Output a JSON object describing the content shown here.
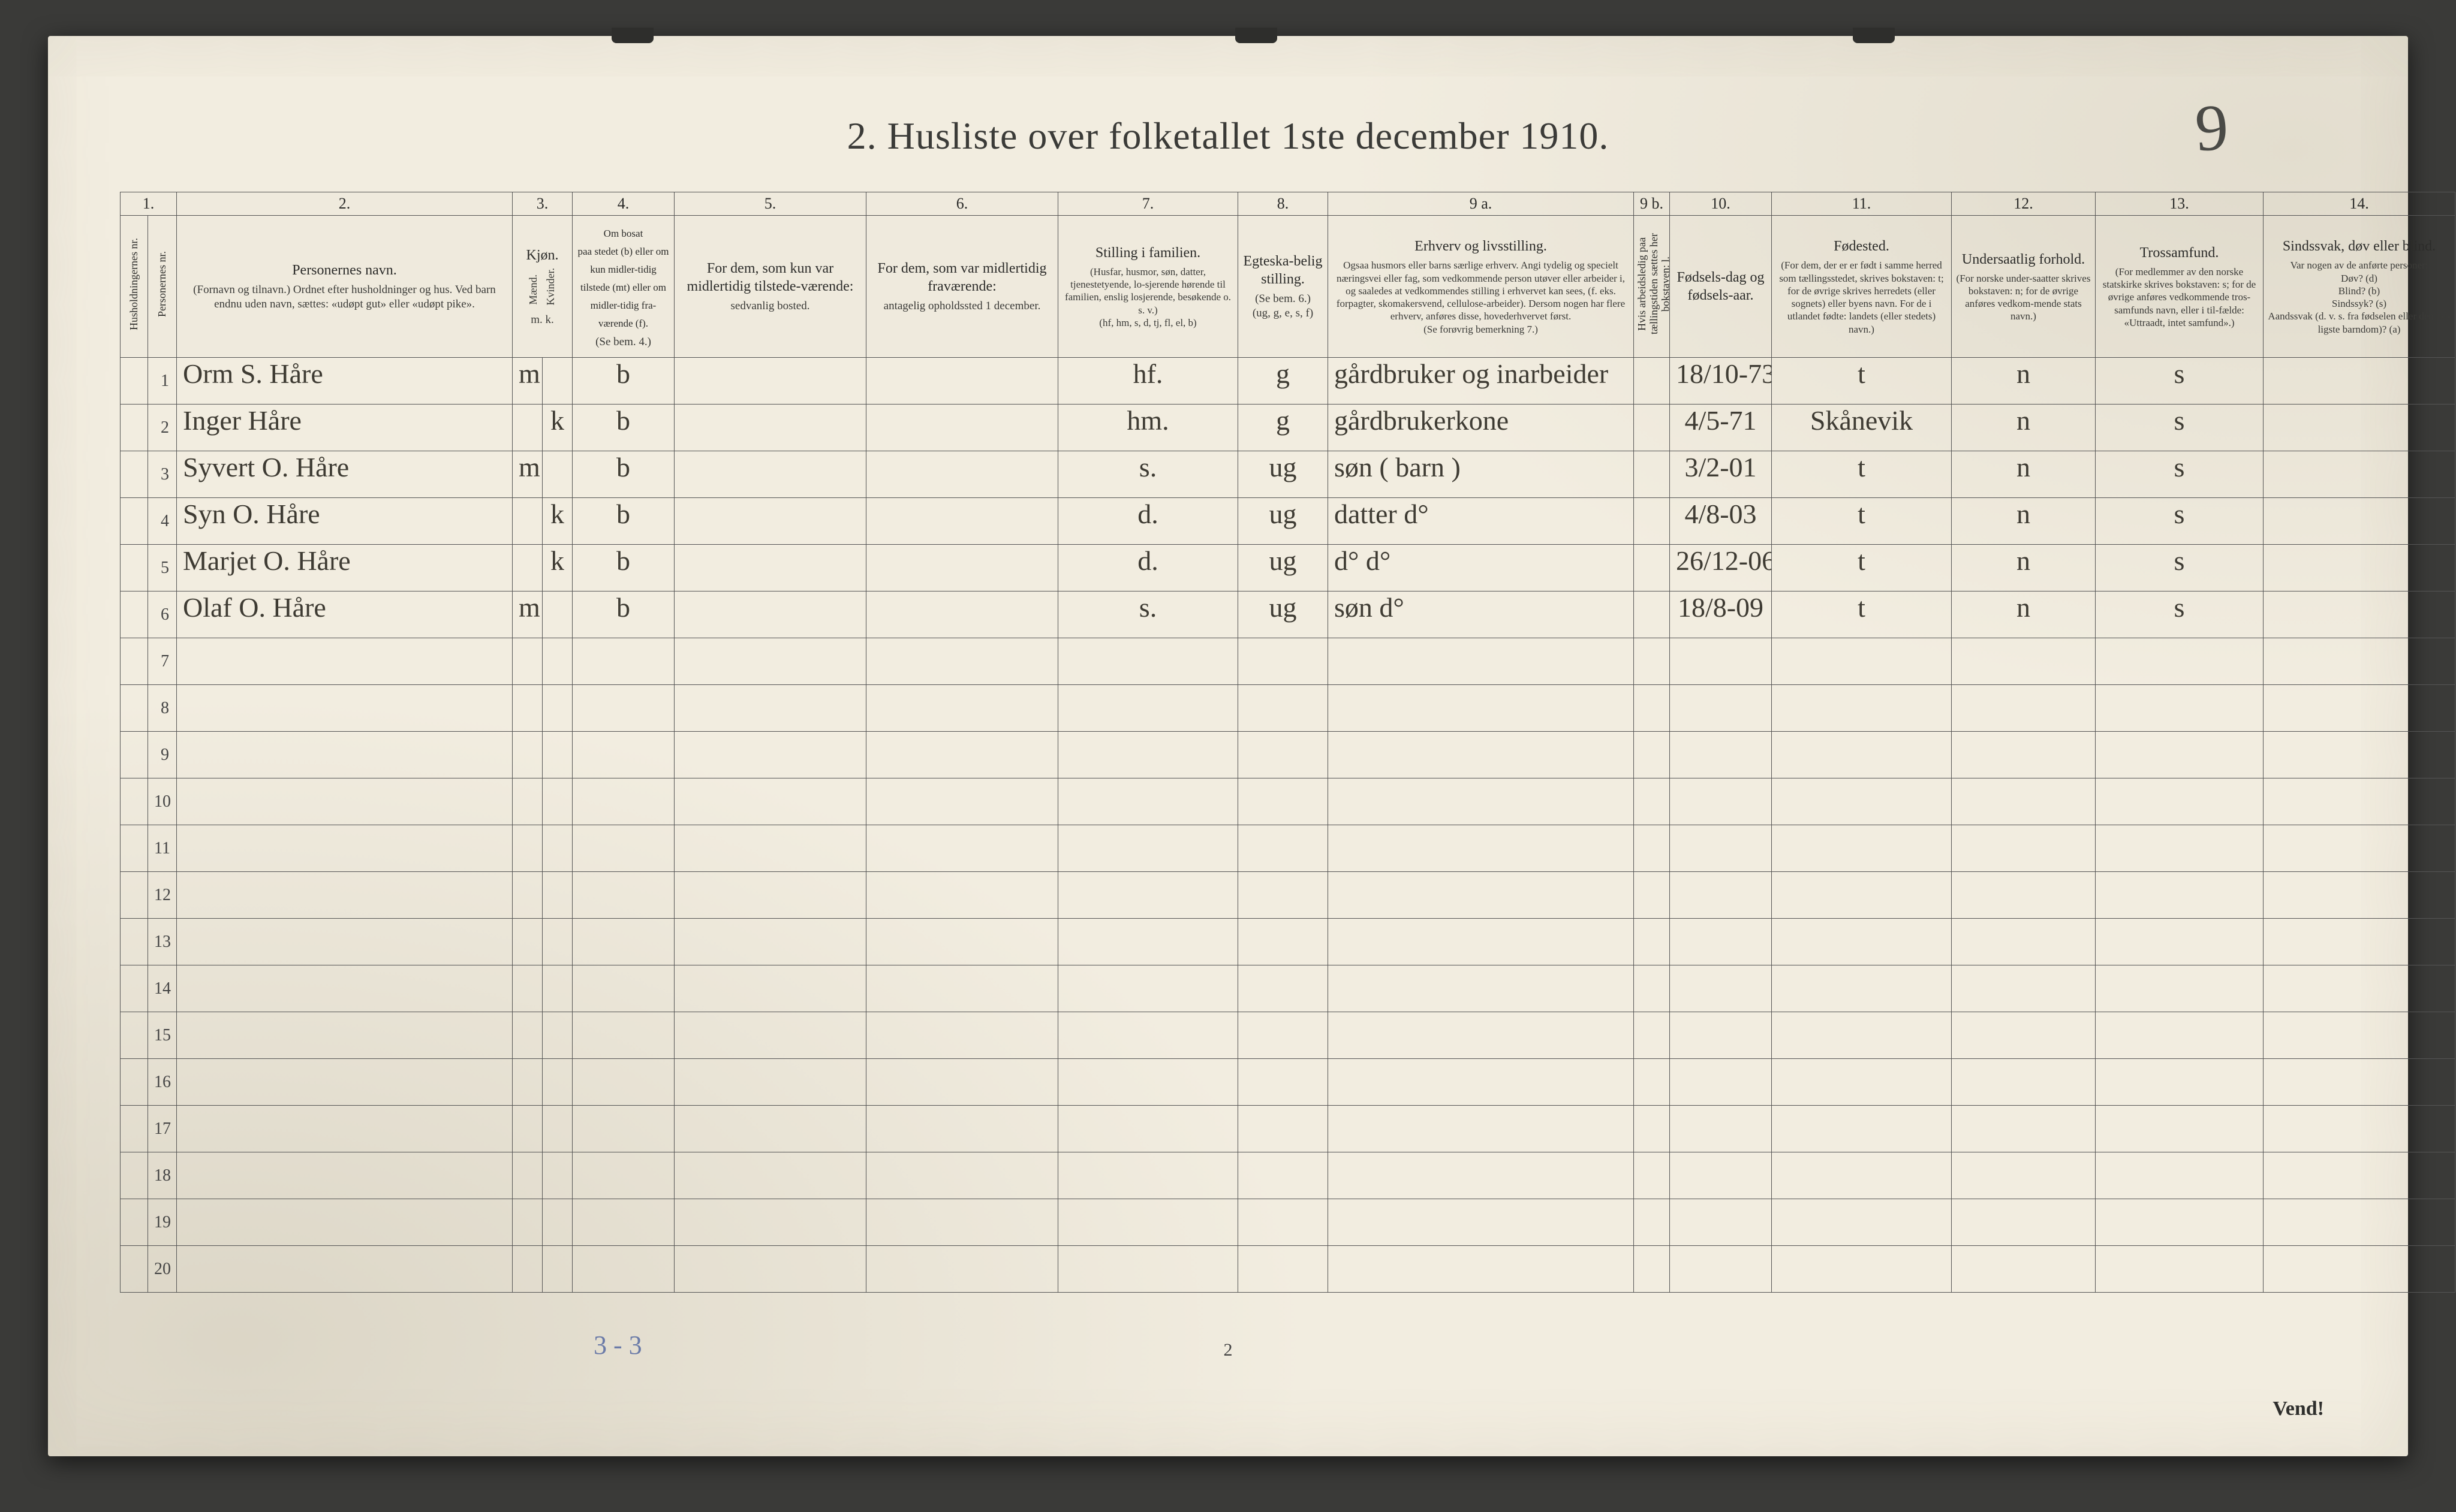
{
  "page": {
    "title": "2.  Husliste over folketallet 1ste december 1910.",
    "hand_number": "9",
    "footer_page": "2",
    "vend": "Vend!",
    "pencil_note": "3 - 3",
    "background_color": "#f2ede0",
    "ink_color": "#3e3b33",
    "rule_color": "#555"
  },
  "columns": {
    "nums": [
      "1.",
      "2.",
      "3.",
      "4.",
      "5.",
      "6.",
      "7.",
      "8.",
      "9 a.",
      "9 b.",
      "10.",
      "11.",
      "12.",
      "13.",
      "14."
    ],
    "c1a": "Husholdningernes nr.",
    "c1b": "Personernes nr.",
    "c2": {
      "title": "Personernes navn.",
      "sub": "(Fornavn og tilnavn.)\nOrdnet efter husholdninger og hus.\nVed barn endnu uden navn, sættes: «udøpt gut» eller «udøpt pike»."
    },
    "c3": {
      "title": "Kjøn.",
      "m": "Mænd.",
      "k": "Kvinder.",
      "mk": "m.  k."
    },
    "c4": {
      "title": "Om bosat\npaa stedet (b) eller om kun midler-tidig tilstede (mt) eller om midler-tidig fra-værende (f).",
      "sub": "(Se bem. 4.)"
    },
    "c5": {
      "title": "For dem, som kun var midlertidig tilstede-værende:",
      "sub": "sedvanlig bosted."
    },
    "c6": {
      "title": "For dem, som var midlertidig fraværende:",
      "sub": "antagelig opholdssted 1 december."
    },
    "c7": {
      "title": "Stilling i familien.",
      "sub": "(Husfar, husmor, søn, datter, tjenestetyende, lo-sjerende hørende til familien, enslig losjerende, besøkende o. s. v.)\n(hf, hm, s, d, tj, fl, el, b)"
    },
    "c8": {
      "title": "Egteska-belig stilling.",
      "sub": "(Se bem. 6.)\n(ug, g, e, s, f)"
    },
    "c9a": {
      "title": "Erhverv og livsstilling.",
      "sub": "Ogsaa husmors eller barns særlige erhverv. Angi tydelig og specielt næringsvei eller fag, som vedkommende person utøver eller arbeider i, og saaledes at vedkommendes stilling i erhvervet kan sees, (f. eks. forpagter, skomakersvend, cellulose-arbeider). Dersom nogen har flere erhverv, anføres disse, hovederhvervet først.\n(Se forøvrig bemerkning 7.)"
    },
    "c9b": "Hvis arbeidsledig paa tællingstiden sættes her bokstaven: l.",
    "c10": {
      "title": "Fødsels-dag og fødsels-aar."
    },
    "c11": {
      "title": "Fødested.",
      "sub": "(For dem, der er er født i samme herred som tællingsstedet, skrives bokstaven: t; for de øvrige skrives herredets (eller sognets) eller byens navn. For de i utlandet fødte: landets (eller stedets) navn.)"
    },
    "c12": {
      "title": "Undersaatlig forhold.",
      "sub": "(For norske under-saatter skrives bokstaven: n; for de øvrige anføres vedkom-mende stats navn.)"
    },
    "c13": {
      "title": "Trossamfund.",
      "sub": "(For medlemmer av den norske statskirke skrives bokstaven: s; for de øvrige anføres vedkommende tros-samfunds navn, eller i til-fælde: «Uttraadt, intet samfund».)"
    },
    "c14": {
      "title": "Sindssvak, døv eller blind.",
      "sub": "Var nogen av de anførte personer:\nDøv?      (d)\nBlind?    (b)\nSindssyk? (s)\nAandssvak (d. v. s. fra fødselen eller den tid-ligste barndom)? (a)"
    }
  },
  "rows": [
    {
      "n": "1",
      "name": "Orm S. Håre",
      "m": "m",
      "k": "",
      "bosat": "b",
      "fam": "hf.",
      "mar": "g",
      "occ": "gårdbruker og inarbeider",
      "birth": "18/10-73",
      "place": "t",
      "nat": "n",
      "rel": "s"
    },
    {
      "n": "2",
      "name": "Inger Håre",
      "m": "",
      "k": "k",
      "bosat": "b",
      "fam": "hm.",
      "mar": "g",
      "occ": "gårdbrukerkone",
      "birth": "4/5-71",
      "place": "Skånevik",
      "nat": "n",
      "rel": "s"
    },
    {
      "n": "3",
      "name": "Syvert O. Håre",
      "m": "m",
      "k": "",
      "bosat": "b",
      "fam": "s.",
      "mar": "ug",
      "occ": "søn  ( barn )",
      "birth": "3/2-01",
      "place": "t",
      "nat": "n",
      "rel": "s"
    },
    {
      "n": "4",
      "name": "Syn O. Håre",
      "m": "",
      "k": "k",
      "bosat": "b",
      "fam": "d.",
      "mar": "ug",
      "occ": "datter   d°",
      "birth": "4/8-03",
      "place": "t",
      "nat": "n",
      "rel": "s"
    },
    {
      "n": "5",
      "name": "Marjet O. Håre",
      "m": "",
      "k": "k",
      "bosat": "b",
      "fam": "d.",
      "mar": "ug",
      "occ": "d°        d°",
      "birth": "26/12-06",
      "place": "t",
      "nat": "n",
      "rel": "s"
    },
    {
      "n": "6",
      "name": "Olaf O. Håre",
      "m": "m",
      "k": "",
      "bosat": "b",
      "fam": "s.",
      "mar": "ug",
      "occ": "søn       d°",
      "birth": "18/8-09",
      "place": "t",
      "nat": "n",
      "rel": "s"
    }
  ],
  "empty_rows": [
    7,
    8,
    9,
    10,
    11,
    12,
    13,
    14,
    15,
    16,
    17,
    18,
    19,
    20
  ]
}
